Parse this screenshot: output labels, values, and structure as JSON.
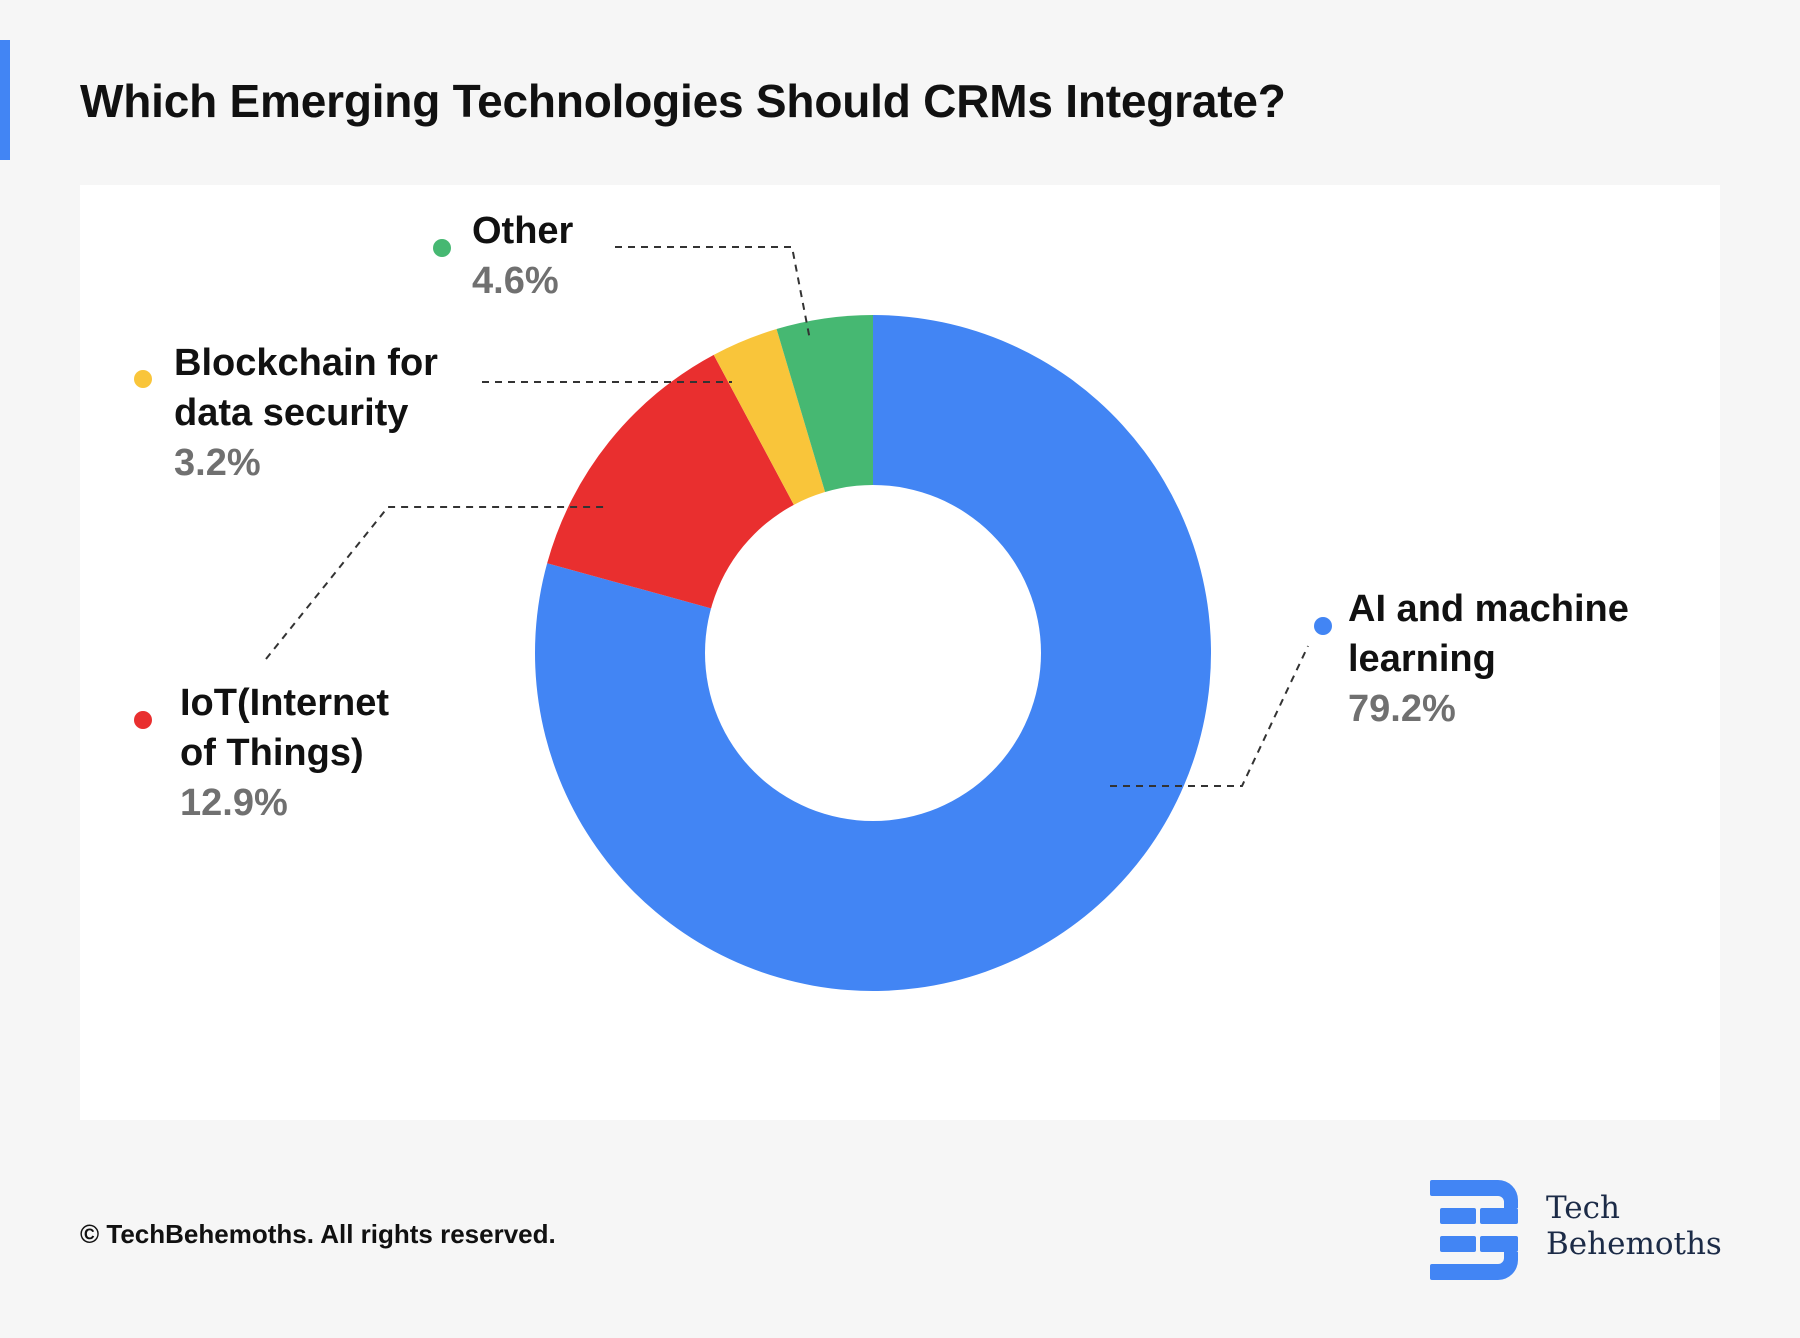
{
  "page": {
    "title": "Which Emerging Technologies Should CRMs Integrate?",
    "copyright": "© TechBehemoths. All rights reserved.",
    "brand": {
      "line1": "Tech",
      "line2": "Behemoths",
      "color": "#4285f4"
    },
    "colors": {
      "accent": "#4285f4",
      "background": "#f6f6f6",
      "card": "#ffffff",
      "label_text": "#111111",
      "value_text": "#707070"
    }
  },
  "chart_data": {
    "type": "pie",
    "variant": "donut",
    "slices": [
      {
        "label_lines": [
          "AI and machine",
          "learning"
        ],
        "value": 79.2,
        "value_label": "79.2%",
        "color": "#4285f4"
      },
      {
        "label_lines": [
          "IoT(Internet",
          "of Things)"
        ],
        "value": 12.9,
        "value_label": "12.9%",
        "color": "#e92f2f"
      },
      {
        "label_lines": [
          "Blockchain for",
          "data security"
        ],
        "value": 3.2,
        "value_label": "3.2%",
        "color": "#f9c53a"
      },
      {
        "label_lines": [
          "Other"
        ],
        "value": 4.6,
        "value_label": "4.6%",
        "color": "#46b872"
      }
    ]
  }
}
